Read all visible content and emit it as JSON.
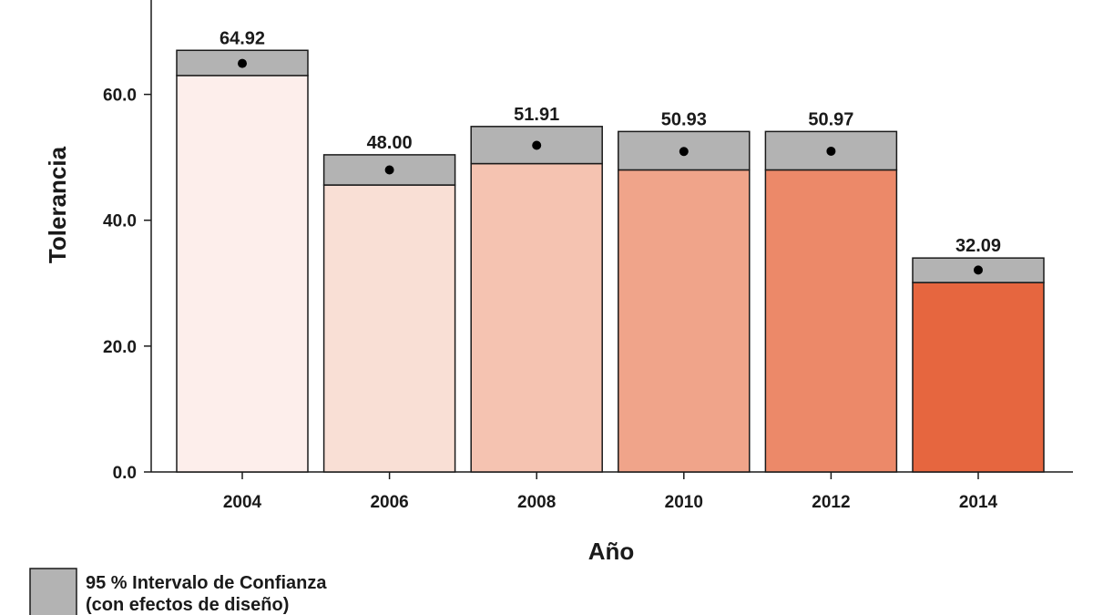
{
  "chart_data": {
    "type": "bar",
    "title": "",
    "xlabel": "Año",
    "ylabel": "Tolerancia",
    "categories": [
      "2004",
      "2006",
      "2008",
      "2010",
      "2012",
      "2014"
    ],
    "values": [
      64.92,
      48.0,
      51.91,
      50.93,
      50.97,
      32.09
    ],
    "value_labels": [
      "64.92",
      "48.00",
      "51.91",
      "50.93",
      "50.97",
      "32.09"
    ],
    "ci_low": [
      63.0,
      45.6,
      49.0,
      48.0,
      48.0,
      30.1
    ],
    "ci_high": [
      67.0,
      50.4,
      54.9,
      54.1,
      54.1,
      34.0
    ],
    "ylim": [
      0,
      75
    ],
    "yticks": [
      0,
      20,
      40,
      60
    ],
    "ytick_labels": [
      "0.0",
      "20.0",
      "40.0",
      "60.0"
    ],
    "bar_colors": [
      "#fdeeeb",
      "#f9dfd5",
      "#f5c3b1",
      "#f0a48a",
      "#ec8969",
      "#e6663f"
    ],
    "ci_color": "#b3b3b3",
    "legend": {
      "position": "bottom-left",
      "line1": "95 % Intervalo de Confianza",
      "line2": "(con efectos de diseño)"
    }
  }
}
